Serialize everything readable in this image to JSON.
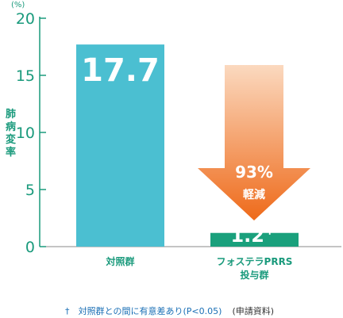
{
  "chart_data": {
    "type": "bar",
    "categories": [
      "対照群",
      "フォステラPRRS 投与群"
    ],
    "category_lines": [
      [
        "対照群"
      ],
      [
        "フォステラPRRS",
        "投与群"
      ]
    ],
    "values": [
      17.7,
      1.2
    ],
    "value_labels": [
      "17.7",
      "1.2"
    ],
    "dagger_mark": "†",
    "ylabel": "肺病変率",
    "yunit": "(%)",
    "ylim": [
      0,
      20
    ],
    "yticks": [
      0,
      5,
      10,
      15,
      20
    ],
    "bar_colors": [
      "#4bbfd1",
      "#1aa07c"
    ],
    "annotation": {
      "percent": "93%",
      "text": "軽減",
      "arrow_color_top": "#fbd9bf",
      "arrow_color_bottom": "#ee6a1a"
    },
    "footnote": {
      "mark": "†",
      "text": "対照群との間に有意差あり(P<0.05)",
      "source": "(申請資料)"
    }
  }
}
